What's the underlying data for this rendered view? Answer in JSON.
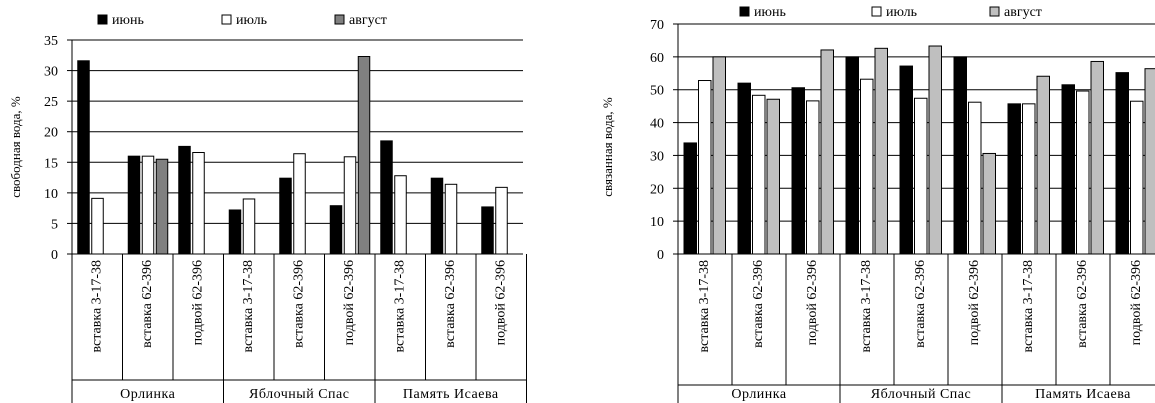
{
  "legend": [
    "июнь",
    "июль",
    "август"
  ],
  "colors": {
    "june": "#000000",
    "july": "#ffffff",
    "august_left": "#808080",
    "august_right": "#bfbfbf",
    "stroke": "#000000"
  },
  "chart_data": [
    {
      "type": "bar",
      "ylabel": "свободная вода, %",
      "ylim": [
        0,
        35
      ],
      "yticks": [
        0,
        5,
        10,
        15,
        20,
        25,
        30,
        35
      ],
      "legend_position": "top",
      "grid": true,
      "groups": [
        "Орлинка",
        "Яблочный Спас",
        "Память Исаева"
      ],
      "categories": [
        "вставка 3-17-38",
        "вставка 62-396",
        "подвой 62-396",
        "вставка 3-17-38",
        "вставка 62-396",
        "подвой 62-396",
        "вставка 3-17-38",
        "вставка 62-396",
        "подвой 62-396"
      ],
      "series": [
        {
          "name": "июнь",
          "values": [
            31.6,
            16.0,
            17.6,
            7.2,
            12.4,
            7.9,
            18.5,
            12.4,
            7.7
          ]
        },
        {
          "name": "июль",
          "values": [
            9.1,
            16.0,
            16.6,
            9.0,
            16.4,
            15.9,
            12.8,
            11.4,
            10.9
          ]
        },
        {
          "name": "август",
          "values": [
            null,
            15.5,
            null,
            null,
            null,
            32.3,
            null,
            null,
            null
          ]
        }
      ]
    },
    {
      "type": "bar",
      "ylabel": "связанная вода, %",
      "ylim": [
        0,
        70
      ],
      "yticks": [
        0,
        10,
        20,
        30,
        40,
        50,
        60,
        70
      ],
      "legend_position": "top",
      "grid": true,
      "groups": [
        "Орлинка",
        "Яблочный Спас",
        "Память Исаева"
      ],
      "categories": [
        "вставка 3-17-38",
        "вставка 62-396",
        "подвой 62-396",
        "вставка 3-17-38",
        "вставка 62-396",
        "подвой 62-396",
        "вставка 3-17-38",
        "вставка 62-396",
        "подвой 62-396"
      ],
      "series": [
        {
          "name": "июнь",
          "values": [
            33.8,
            52.0,
            50.6,
            60.0,
            57.2,
            60.0,
            45.7,
            51.5,
            55.2
          ]
        },
        {
          "name": "июль",
          "values": [
            52.8,
            48.3,
            46.6,
            53.2,
            47.4,
            46.2,
            45.7,
            49.6,
            46.5
          ]
        },
        {
          "name": "август",
          "values": [
            60.0,
            47.1,
            62.1,
            62.6,
            63.3,
            30.6,
            54.1,
            58.6,
            56.4
          ]
        }
      ]
    }
  ]
}
